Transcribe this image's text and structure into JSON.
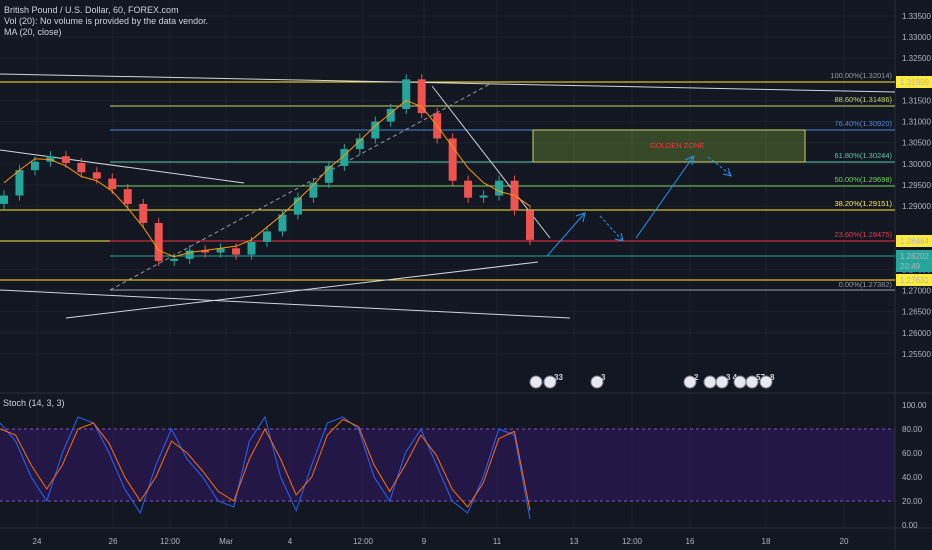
{
  "header": {
    "symbol": "British Pound / U.S. Dollar, 60, FOREX.com",
    "volume_note": "Vol (20): No volume is provided by the data vendor.",
    "ma_label": "MA (20, close)"
  },
  "price_axis": {
    "ticks": [
      "1.33500",
      "1.33000",
      "1.32500",
      "1.31500",
      "1.31000",
      "1.30500",
      "1.30000",
      "1.29500",
      "1.29000",
      "1.27500",
      "1.27000",
      "1.26500",
      "1.26000",
      "1.25500"
    ],
    "badges": [
      {
        "text": "1.31999",
        "bg": "#ffeb3b",
        "fg": "#131722"
      },
      {
        "text": "1.28484",
        "bg": "#ffeb3b",
        "fg": "#131722"
      },
      {
        "text": "1.28202",
        "bg": "#26a69a",
        "fg": "#ffffff"
      },
      {
        "text": "20:49",
        "bg": "#26a69a",
        "fg": "#ffffff"
      },
      {
        "text": "1.27631",
        "bg": "#ffeb3b",
        "fg": "#131722"
      }
    ]
  },
  "time_axis": {
    "ticks": [
      "24",
      "26",
      "12:00",
      "Mar",
      "4",
      "12:00",
      "9",
      "11",
      "13",
      "12:00",
      "16",
      "18",
      "20"
    ]
  },
  "fib_levels": [
    {
      "label": "100.00%(1.32014)",
      "color": "#9598a1"
    },
    {
      "label": "88.60%(1.31486)",
      "color": "#c7d46a"
    },
    {
      "label": "76.40%(1.30920)",
      "color": "#4d89d6"
    },
    {
      "label": "61.80%(1.30244)",
      "color": "#5ac8a8"
    },
    {
      "label": "50.00%(1.29698)",
      "color": "#6fd35c"
    },
    {
      "label": "38.20%(1.29151)",
      "color": "#ffeb3b"
    },
    {
      "label": "23.60%(1.28475)",
      "color": "#f23645"
    },
    {
      "label": "0.00%(1.27382)",
      "color": "#9598a1"
    }
  ],
  "golden_zone": {
    "label": "GOLDEN ZONE"
  },
  "stoch": {
    "label": "Stoch (14, 3, 3)",
    "ticks": [
      "100.00",
      "80.00",
      "60.00",
      "40.00",
      "20.00",
      "0.00"
    ]
  },
  "event_badges": [
    "33",
    "3",
    "2",
    "3",
    "4",
    "57",
    "8"
  ],
  "chart_data": [
    {
      "type": "line",
      "title": "British Pound / U.S. Dollar, 60, FOREX.com",
      "series": [
        {
          "name": "MA (20, close)",
          "values": [
            1.2955,
            1.2985,
            1.3012,
            1.301,
            1.2995,
            1.297,
            1.296,
            1.2935,
            1.2895,
            1.285,
            1.2795,
            1.278,
            1.279,
            1.2795,
            1.28,
            1.2805,
            1.282,
            1.285,
            1.288,
            1.2915,
            1.295,
            1.299,
            1.302,
            1.3055,
            1.309,
            1.312,
            1.315,
            1.3135,
            1.309,
            1.304,
            1.299,
            1.2955,
            1.2935,
            1.2925,
            1.29
          ]
        }
      ],
      "price_candles_close": [
        1.2925,
        1.2985,
        1.3005,
        1.3018,
        1.3002,
        1.298,
        1.2965,
        1.294,
        1.2905,
        1.286,
        1.277,
        1.2775,
        1.2795,
        1.279,
        1.28,
        1.2785,
        1.2815,
        1.284,
        1.288,
        1.292,
        1.2955,
        1.2995,
        1.3035,
        1.306,
        1.31,
        1.313,
        1.32,
        1.312,
        1.306,
        1.296,
        1.292,
        1.2925,
        1.296,
        1.289,
        1.282
      ],
      "ylim": [
        1.25,
        1.335
      ]
    },
    {
      "type": "line",
      "title": "Stoch (14, 3, 3)",
      "series": [
        {
          "name": "%K",
          "values": [
            85,
            70,
            40,
            20,
            60,
            90,
            85,
            60,
            30,
            10,
            50,
            80,
            55,
            40,
            20,
            15,
            70,
            90,
            40,
            12,
            50,
            85,
            90,
            80,
            40,
            20,
            60,
            80,
            50,
            20,
            10,
            40,
            80,
            75,
            5
          ]
        },
        {
          "name": "%D",
          "values": [
            80,
            75,
            50,
            30,
            50,
            80,
            85,
            68,
            40,
            20,
            40,
            70,
            60,
            45,
            28,
            20,
            55,
            80,
            55,
            25,
            40,
            75,
            88,
            82,
            50,
            28,
            50,
            75,
            58,
            30,
            15,
            35,
            72,
            78,
            12
          ]
        }
      ],
      "ylim": [
        0,
        100
      ]
    }
  ]
}
